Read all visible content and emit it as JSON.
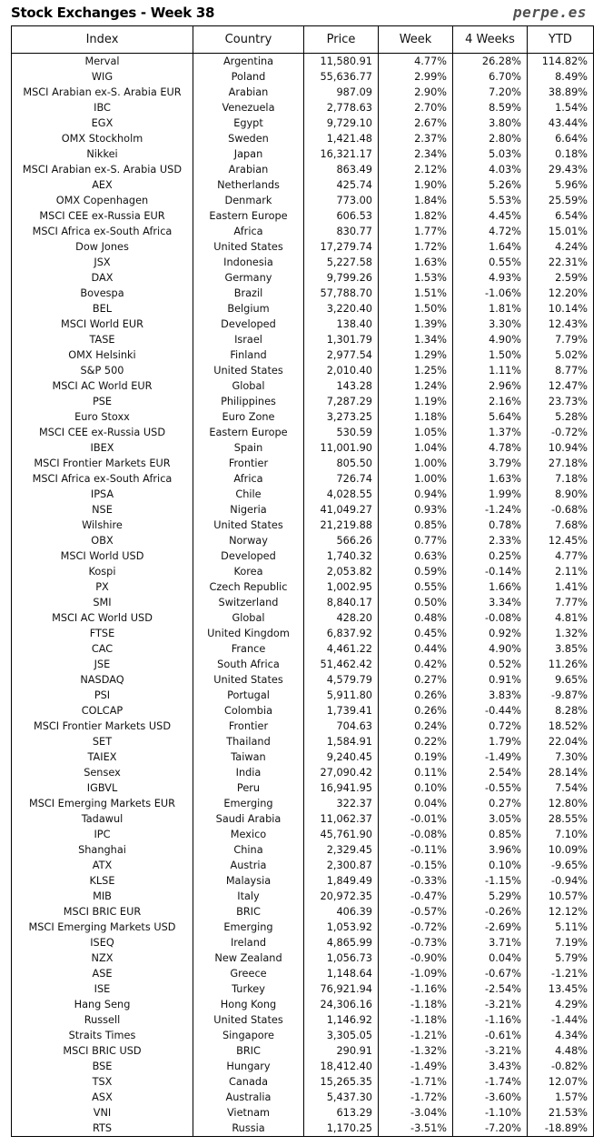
{
  "header": {
    "title": "Stock Exchanges - Week 38",
    "brand": "perpe.es"
  },
  "colors": {
    "positive": "#2e8b2e",
    "negative": "#e0201c"
  },
  "columns": [
    "Index",
    "Country",
    "Price",
    "Week",
    "4 Weeks",
    "YTD"
  ],
  "rows": [
    [
      "Merval",
      "Argentina",
      "11,580.91",
      "4.77%",
      "26.28%",
      "114.82%"
    ],
    [
      "WIG",
      "Poland",
      "55,636.77",
      "2.99%",
      "6.70%",
      "8.49%"
    ],
    [
      "MSCI Arabian ex-S. Arabia EUR",
      "Arabian",
      "987.09",
      "2.90%",
      "7.20%",
      "38.89%"
    ],
    [
      "IBC",
      "Venezuela",
      "2,778.63",
      "2.70%",
      "8.59%",
      "1.54%"
    ],
    [
      "EGX",
      "Egypt",
      "9,729.10",
      "2.67%",
      "3.80%",
      "43.44%"
    ],
    [
      "OMX Stockholm",
      "Sweden",
      "1,421.48",
      "2.37%",
      "2.80%",
      "6.64%"
    ],
    [
      "Nikkei",
      "Japan",
      "16,321.17",
      "2.34%",
      "5.03%",
      "0.18%"
    ],
    [
      "MSCI Arabian ex-S. Arabia USD",
      "Arabian",
      "863.49",
      "2.12%",
      "4.03%",
      "29.43%"
    ],
    [
      "AEX",
      "Netherlands",
      "425.74",
      "1.90%",
      "5.26%",
      "5.96%"
    ],
    [
      "OMX Copenhagen",
      "Denmark",
      "773.00",
      "1.84%",
      "5.53%",
      "25.59%"
    ],
    [
      "MSCI CEE ex-Russia EUR",
      "Eastern Europe",
      "606.53",
      "1.82%",
      "4.45%",
      "6.54%"
    ],
    [
      "MSCI Africa ex-South Africa",
      "Africa",
      "830.77",
      "1.77%",
      "4.72%",
      "15.01%"
    ],
    [
      "Dow Jones",
      "United States",
      "17,279.74",
      "1.72%",
      "1.64%",
      "4.24%"
    ],
    [
      "JSX",
      "Indonesia",
      "5,227.58",
      "1.63%",
      "0.55%",
      "22.31%"
    ],
    [
      "DAX",
      "Germany",
      "9,799.26",
      "1.53%",
      "4.93%",
      "2.59%"
    ],
    [
      "Bovespa",
      "Brazil",
      "57,788.70",
      "1.51%",
      "-1.06%",
      "12.20%"
    ],
    [
      "BEL",
      "Belgium",
      "3,220.40",
      "1.50%",
      "1.81%",
      "10.14%"
    ],
    [
      "MSCI World EUR",
      "Developed",
      "138.40",
      "1.39%",
      "3.30%",
      "12.43%"
    ],
    [
      "TASE",
      "Israel",
      "1,301.79",
      "1.34%",
      "4.90%",
      "7.79%"
    ],
    [
      "OMX Helsinki",
      "Finland",
      "2,977.54",
      "1.29%",
      "1.50%",
      "5.02%"
    ],
    [
      "S&P 500",
      "United States",
      "2,010.40",
      "1.25%",
      "1.11%",
      "8.77%"
    ],
    [
      "MSCI AC World EUR",
      "Global",
      "143.28",
      "1.24%",
      "2.96%",
      "12.47%"
    ],
    [
      "PSE",
      "Philippines",
      "7,287.29",
      "1.19%",
      "2.16%",
      "23.73%"
    ],
    [
      "Euro Stoxx",
      "Euro Zone",
      "3,273.25",
      "1.18%",
      "5.64%",
      "5.28%"
    ],
    [
      "MSCI CEE ex-Russia USD",
      "Eastern Europe",
      "530.59",
      "1.05%",
      "1.37%",
      "-0.72%"
    ],
    [
      "IBEX",
      "Spain",
      "11,001.90",
      "1.04%",
      "4.78%",
      "10.94%"
    ],
    [
      "MSCI Frontier Markets EUR",
      "Frontier",
      "805.50",
      "1.00%",
      "3.79%",
      "27.18%"
    ],
    [
      "MSCI Africa ex-South Africa",
      "Africa",
      "726.74",
      "1.00%",
      "1.63%",
      "7.18%"
    ],
    [
      "IPSA",
      "Chile",
      "4,028.55",
      "0.94%",
      "1.99%",
      "8.90%"
    ],
    [
      "NSE",
      "Nigeria",
      "41,049.27",
      "0.93%",
      "-1.24%",
      "-0.68%"
    ],
    [
      "Wilshire",
      "United States",
      "21,219.88",
      "0.85%",
      "0.78%",
      "7.68%"
    ],
    [
      "OBX",
      "Norway",
      "566.26",
      "0.77%",
      "2.33%",
      "12.45%"
    ],
    [
      "MSCI World USD",
      "Developed",
      "1,740.32",
      "0.63%",
      "0.25%",
      "4.77%"
    ],
    [
      "Kospi",
      "Korea",
      "2,053.82",
      "0.59%",
      "-0.14%",
      "2.11%"
    ],
    [
      "PX",
      "Czech Republic",
      "1,002.95",
      "0.55%",
      "1.66%",
      "1.41%"
    ],
    [
      "SMI",
      "Switzerland",
      "8,840.17",
      "0.50%",
      "3.34%",
      "7.77%"
    ],
    [
      "MSCI AC World USD",
      "Global",
      "428.20",
      "0.48%",
      "-0.08%",
      "4.81%"
    ],
    [
      "FTSE",
      "United Kingdom",
      "6,837.92",
      "0.45%",
      "0.92%",
      "1.32%"
    ],
    [
      "CAC",
      "France",
      "4,461.22",
      "0.44%",
      "4.90%",
      "3.85%"
    ],
    [
      "JSE",
      "South Africa",
      "51,462.42",
      "0.42%",
      "0.52%",
      "11.26%"
    ],
    [
      "NASDAQ",
      "United States",
      "4,579.79",
      "0.27%",
      "0.91%",
      "9.65%"
    ],
    [
      "PSI",
      "Portugal",
      "5,911.80",
      "0.26%",
      "3.83%",
      "-9.87%"
    ],
    [
      "COLCAP",
      "Colombia",
      "1,739.41",
      "0.26%",
      "-0.44%",
      "8.28%"
    ],
    [
      "MSCI Frontier Markets USD",
      "Frontier",
      "704.63",
      "0.24%",
      "0.72%",
      "18.52%"
    ],
    [
      "SET",
      "Thailand",
      "1,584.91",
      "0.22%",
      "1.79%",
      "22.04%"
    ],
    [
      "TAIEX",
      "Taiwan",
      "9,240.45",
      "0.19%",
      "-1.49%",
      "7.30%"
    ],
    [
      "Sensex",
      "India",
      "27,090.42",
      "0.11%",
      "2.54%",
      "28.14%"
    ],
    [
      "IGBVL",
      "Peru",
      "16,941.95",
      "0.10%",
      "-0.55%",
      "7.54%"
    ],
    [
      "MSCI Emerging Markets EUR",
      "Emerging",
      "322.37",
      "0.04%",
      "0.27%",
      "12.80%"
    ],
    [
      "Tadawul",
      "Saudi Arabia",
      "11,062.37",
      "-0.01%",
      "3.05%",
      "28.55%"
    ],
    [
      "IPC",
      "Mexico",
      "45,761.90",
      "-0.08%",
      "0.85%",
      "7.10%"
    ],
    [
      "Shanghai",
      "China",
      "2,329.45",
      "-0.11%",
      "3.96%",
      "10.09%"
    ],
    [
      "ATX",
      "Austria",
      "2,300.87",
      "-0.15%",
      "0.10%",
      "-9.65%"
    ],
    [
      "KLSE",
      "Malaysia",
      "1,849.49",
      "-0.33%",
      "-1.15%",
      "-0.94%"
    ],
    [
      "MIB",
      "Italy",
      "20,972.35",
      "-0.47%",
      "5.29%",
      "10.57%"
    ],
    [
      "MSCI BRIC EUR",
      "BRIC",
      "406.39",
      "-0.57%",
      "-0.26%",
      "12.12%"
    ],
    [
      "MSCI Emerging Markets USD",
      "Emerging",
      "1,053.92",
      "-0.72%",
      "-2.69%",
      "5.11%"
    ],
    [
      "ISEQ",
      "Ireland",
      "4,865.99",
      "-0.73%",
      "3.71%",
      "7.19%"
    ],
    [
      "NZX",
      "New Zealand",
      "1,056.73",
      "-0.90%",
      "0.04%",
      "5.79%"
    ],
    [
      "ASE",
      "Greece",
      "1,148.64",
      "-1.09%",
      "-0.67%",
      "-1.21%"
    ],
    [
      "ISE",
      "Turkey",
      "76,921.94",
      "-1.16%",
      "-2.54%",
      "13.45%"
    ],
    [
      "Hang Seng",
      "Hong Kong",
      "24,306.16",
      "-1.18%",
      "-3.21%",
      "4.29%"
    ],
    [
      "Russell",
      "United States",
      "1,146.92",
      "-1.18%",
      "-1.16%",
      "-1.44%"
    ],
    [
      "Straits Times",
      "Singapore",
      "3,305.05",
      "-1.21%",
      "-0.61%",
      "4.34%"
    ],
    [
      "MSCI BRIC USD",
      "BRIC",
      "290.91",
      "-1.32%",
      "-3.21%",
      "4.48%"
    ],
    [
      "BSE",
      "Hungary",
      "18,412.40",
      "-1.49%",
      "3.43%",
      "-0.82%"
    ],
    [
      "TSX",
      "Canada",
      "15,265.35",
      "-1.71%",
      "-1.74%",
      "12.07%"
    ],
    [
      "ASX",
      "Australia",
      "5,437.30",
      "-1.72%",
      "-3.60%",
      "1.57%"
    ],
    [
      "VNI",
      "Vietnam",
      "613.29",
      "-3.04%",
      "-1.10%",
      "21.53%"
    ],
    [
      "RTS",
      "Russia",
      "1,170.25",
      "-3.51%",
      "-7.20%",
      "-18.89%"
    ]
  ]
}
